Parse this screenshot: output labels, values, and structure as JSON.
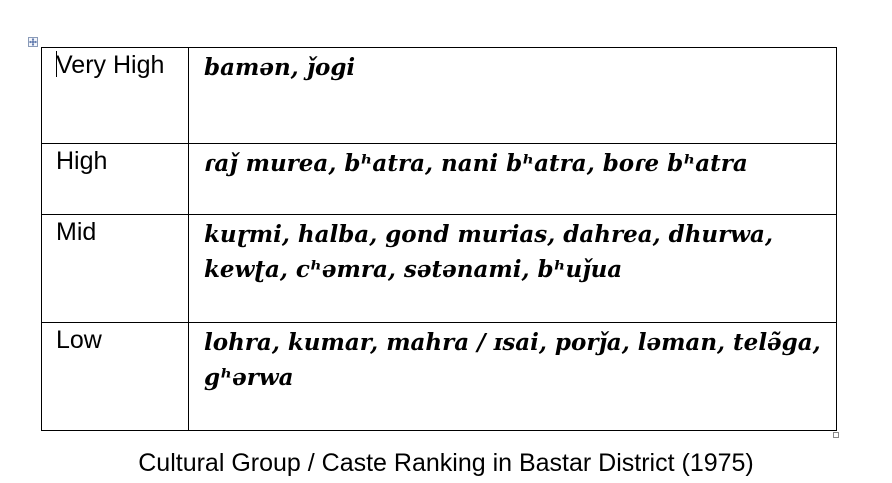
{
  "table": {
    "rows": [
      {
        "rank": "Very High",
        "groups": "bamən, ǰogi"
      },
      {
        "rank": "High",
        "groups": "ɾaǰ murea, bʰatra, nani bʰatra, boɾe bʰatra"
      },
      {
        "rank": "Mid",
        "groups": "kuɽmi, halba, gond murias, dahrea, dhurwa, kewʈa, cʰəmra, sətənami, bʰuǰua"
      },
      {
        "rank": "Low",
        "groups": "lohra, kumar, mahra / ɪsai, porǰa, ləman, telə̃ga, gʰərwa"
      }
    ]
  },
  "caption": "Cultural Group / Caste Ranking in Bastar District (1975)",
  "icons": {
    "table_move_handle": "move-arrows-icon",
    "table_resize_handle": "resize-handle-icon"
  }
}
